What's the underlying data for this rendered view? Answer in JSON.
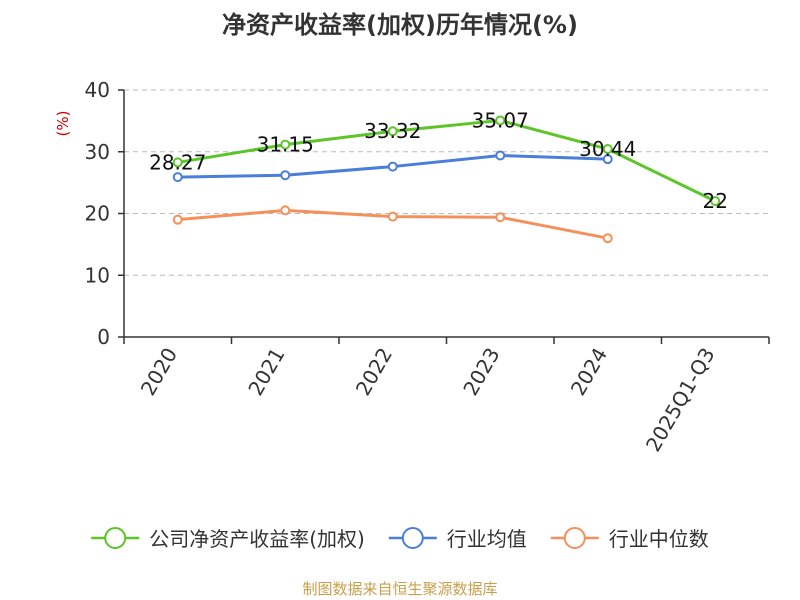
{
  "chart_data": {
    "type": "line",
    "title": "净资产收益率(加权)历年情况(%)",
    "ylabel": "(%)",
    "xlabel": "",
    "ylim": [
      0,
      40
    ],
    "yticks": [
      0,
      10,
      20,
      30,
      40
    ],
    "categories": [
      "2020",
      "2021",
      "2022",
      "2023",
      "2024",
      "2025Q1-Q3"
    ],
    "series": [
      {
        "name": "公司净资产收益率(加权)",
        "color": "#5cc527",
        "values": [
          28.27,
          31.15,
          33.32,
          35.07,
          30.44,
          22
        ],
        "labels": [
          "28.27",
          "31.15",
          "33.32",
          "35.07",
          "30.44",
          "22"
        ]
      },
      {
        "name": "行业均值",
        "color": "#4a7edb",
        "values": [
          25.9,
          26.2,
          27.6,
          29.4,
          28.8,
          null
        ]
      },
      {
        "name": "行业中位数",
        "color": "#f5905a",
        "values": [
          19.0,
          20.5,
          19.5,
          19.4,
          16.0,
          null
        ]
      }
    ],
    "grid": true,
    "legend": "bottom"
  },
  "source": "制图数据来自恒生聚源数据库"
}
